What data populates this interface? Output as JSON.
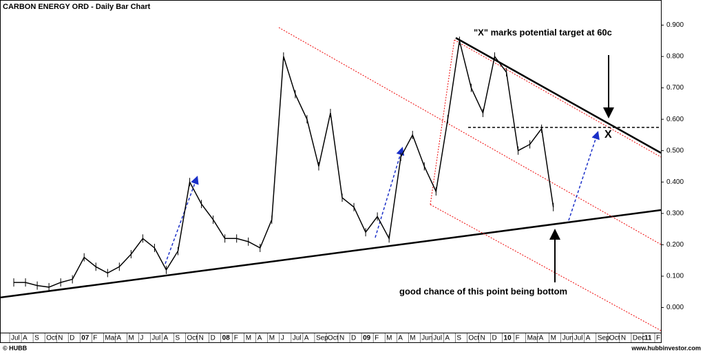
{
  "chart_data": {
    "type": "line",
    "title": "CARBON ENERGY ORD - Daily Bar Chart",
    "categories": [
      "Jul",
      "A",
      "S",
      "Oct",
      "N",
      "D",
      "07",
      "F",
      "Mar",
      "A",
      "M",
      "J",
      "Jul",
      "A",
      "S",
      "Oct",
      "N",
      "D",
      "08",
      "F",
      "M",
      "A",
      "M",
      "J",
      "Jul",
      "A",
      "Sep",
      "Oct",
      "N",
      "D",
      "09",
      "F",
      "M",
      "A",
      "M",
      "Jun",
      "Jul",
      "A",
      "S",
      "Oct",
      "N",
      "D",
      "10",
      "F",
      "Mar",
      "A",
      "M",
      "Jun",
      "Jul",
      "A",
      "Sep",
      "Oct",
      "N",
      "Dec",
      "11",
      "F"
    ],
    "values": [
      0.08,
      0.08,
      0.07,
      0.065,
      0.08,
      0.09,
      0.16,
      0.13,
      0.11,
      0.13,
      0.17,
      0.22,
      0.19,
      0.12,
      0.18,
      0.4,
      0.33,
      0.28,
      0.22,
      0.22,
      0.21,
      0.19,
      0.28,
      0.8,
      0.68,
      0.6,
      0.45,
      0.62,
      0.35,
      0.32,
      0.24,
      0.29,
      0.22,
      0.48,
      0.55,
      0.45,
      0.37,
      0.6,
      0.85,
      0.7,
      0.62,
      0.8,
      0.75,
      0.5,
      0.52,
      0.57,
      0.32,
      null,
      null,
      null,
      null,
      null,
      null,
      null,
      null,
      null
    ],
    "color": "#000000",
    "ylim": [
      -0.08,
      0.98
    ],
    "yticks": [
      {
        "value": 0,
        "label": "0.000"
      },
      {
        "value": 0.1,
        "label": "0.100"
      },
      {
        "value": 0.2,
        "label": "0.200"
      },
      {
        "value": 0.3,
        "label": "0.300"
      },
      {
        "value": 0.4,
        "label": "0.400"
      },
      {
        "value": 0.5,
        "label": "0.500"
      },
      {
        "value": 0.6,
        "label": "0.600"
      },
      {
        "value": 0.7,
        "label": "0.700"
      },
      {
        "value": 0.8,
        "label": "0.800"
      },
      {
        "value": 0.9,
        "label": "0.900"
      }
    ],
    "annotations": {
      "target": "\"X\" marks potential target at 60c",
      "x_mark": "X",
      "bottom": "good chance of this point being bottom"
    },
    "credit": "© HUBB",
    "website": "www.hubbinvestor.com"
  }
}
